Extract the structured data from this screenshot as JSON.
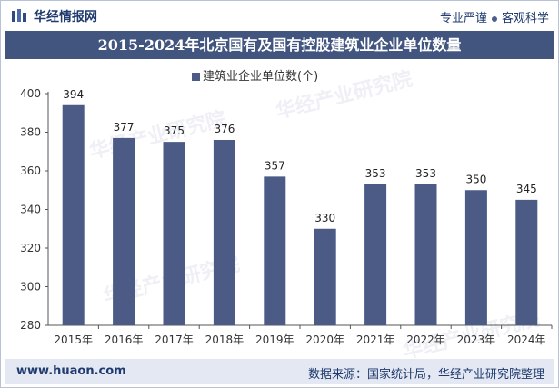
{
  "header": {
    "logo_text": "华经情报网",
    "motto_left": "专业严谨",
    "motto_right": "客观科学"
  },
  "footer": {
    "site": "www.huaon.com",
    "source": "数据来源：国家统计局，华经产业研究院整理"
  },
  "chart_data": {
    "type": "bar",
    "title": "2015-2024年北京国有及国有控股建筑业企业单位数量",
    "categories": [
      "2015年",
      "2016年",
      "2017年",
      "2018年",
      "2019年",
      "2020年",
      "2021年",
      "2022年",
      "2023年",
      "2024年"
    ],
    "series": [
      {
        "name": "建筑业企业单位数(个)",
        "values": [
          394,
          377,
          375,
          376,
          357,
          330,
          353,
          353,
          350,
          345
        ]
      }
    ],
    "ylim": [
      280,
      400
    ],
    "yticks": [
      280,
      300,
      320,
      340,
      360,
      380,
      400
    ],
    "grid": false,
    "legend": "top-center",
    "colors": {
      "bar": "#4b5b86",
      "title_bg": "#41557f",
      "footer_bg": "#e3e8f3"
    }
  }
}
